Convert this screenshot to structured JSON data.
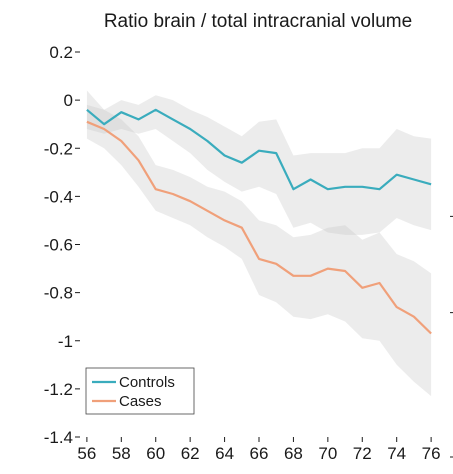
{
  "chart_data": {
    "type": "line",
    "title": "Ratio brain / total intracranial volume",
    "xlabel": "",
    "ylabel": "",
    "xlim": [
      55.6,
      76.4
    ],
    "ylim": [
      -1.4,
      0.2
    ],
    "xticks": [
      56,
      58,
      60,
      62,
      64,
      66,
      68,
      70,
      72,
      74,
      76
    ],
    "yticks": [
      0.2,
      0,
      -0.2,
      -0.4,
      -0.6,
      -0.8,
      -1,
      -1.2,
      -1.4
    ],
    "xtick_labels": [
      "56",
      "58",
      "60",
      "62",
      "64",
      "66",
      "68",
      "70",
      "72",
      "74",
      "76"
    ],
    "ytick_labels": [
      "0.2",
      "0",
      "-0.2",
      "-0.4",
      "-0.6",
      "-0.8",
      "-1",
      "-1.2",
      "-1.4"
    ],
    "x": [
      56,
      57,
      58,
      59,
      60,
      61,
      62,
      63,
      64,
      65,
      66,
      67,
      68,
      69,
      70,
      71,
      72,
      73,
      74,
      75,
      76
    ],
    "series": [
      {
        "name": "Controls",
        "color": "#3aacbd",
        "values": [
          -0.04,
          -0.1,
          -0.05,
          -0.08,
          -0.04,
          -0.08,
          -0.12,
          -0.17,
          -0.23,
          -0.26,
          -0.21,
          -0.22,
          -0.37,
          -0.33,
          -0.37,
          -0.36,
          -0.36,
          -0.37,
          -0.31,
          -0.33,
          -0.35
        ],
        "lower": [
          -0.12,
          -0.14,
          -0.12,
          -0.14,
          -0.12,
          -0.17,
          -0.22,
          -0.29,
          -0.34,
          -0.38,
          -0.36,
          -0.39,
          -0.53,
          -0.51,
          -0.55,
          -0.56,
          -0.56,
          -0.55,
          -0.49,
          -0.52,
          -0.54
        ],
        "upper": [
          0.04,
          -0.04,
          0.0,
          -0.02,
          0.02,
          0.0,
          -0.04,
          -0.07,
          -0.11,
          -0.15,
          -0.09,
          -0.08,
          -0.23,
          -0.22,
          -0.22,
          -0.22,
          -0.2,
          -0.2,
          -0.12,
          -0.15,
          -0.16
        ]
      },
      {
        "name": "Cases",
        "color": "#f0a07a",
        "values": [
          -0.09,
          -0.12,
          -0.17,
          -0.25,
          -0.37,
          -0.39,
          -0.42,
          -0.46,
          -0.5,
          -0.53,
          -0.66,
          -0.68,
          -0.73,
          -0.73,
          -0.7,
          -0.71,
          -0.78,
          -0.76,
          -0.86,
          -0.9,
          -0.97
        ],
        "lower": [
          -0.16,
          -0.2,
          -0.27,
          -0.36,
          -0.46,
          -0.49,
          -0.52,
          -0.57,
          -0.61,
          -0.66,
          -0.81,
          -0.84,
          -0.9,
          -0.91,
          -0.89,
          -0.92,
          -0.99,
          -1.0,
          -1.1,
          -1.17,
          -1.23
        ],
        "upper": [
          -0.02,
          -0.04,
          -0.08,
          -0.15,
          -0.27,
          -0.29,
          -0.32,
          -0.36,
          -0.38,
          -0.42,
          -0.5,
          -0.52,
          -0.57,
          -0.56,
          -0.53,
          -0.52,
          -0.58,
          -0.55,
          -0.64,
          -0.67,
          -0.72
        ]
      }
    ],
    "band_color": "#bfbfbf",
    "legend_position": "bottom-left",
    "grid": false
  }
}
